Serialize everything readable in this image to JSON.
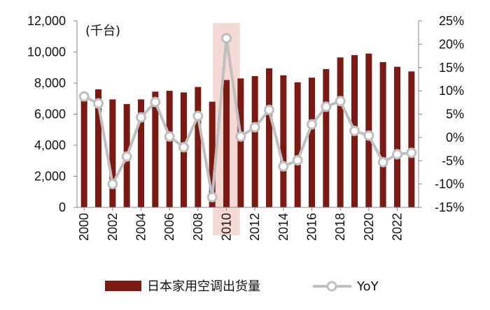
{
  "chart_data": {
    "type": "bar",
    "x": [
      2000,
      2001,
      2002,
      2003,
      2004,
      2005,
      2006,
      2007,
      2008,
      2009,
      2010,
      2011,
      2012,
      2013,
      2014,
      2015,
      2016,
      2017,
      2018,
      2019,
      2020,
      2021,
      2022,
      2023
    ],
    "x_tick_labels": [
      "2000",
      "2002",
      "2004",
      "2006",
      "2008",
      "2010",
      "2012",
      "2014",
      "2016",
      "2018",
      "2020",
      "2022"
    ],
    "series": [
      {
        "name": "日本家用空调出货量",
        "type": "bar",
        "axis": "left",
        "color": "#7B1A12",
        "values": [
          7200,
          7600,
          6950,
          6650,
          6950,
          7450,
          7500,
          7400,
          7750,
          6800,
          8200,
          8300,
          8450,
          8950,
          8500,
          8050,
          8350,
          8900,
          9650,
          9800,
          9900,
          9350,
          9050,
          8750
        ]
      },
      {
        "name": "YoY",
        "type": "line",
        "axis": "right",
        "color": "#BFBFBF",
        "values": [
          8.8,
          7.3,
          -10,
          -4.1,
          4.3,
          7.6,
          0.2,
          -2.1,
          4.6,
          -12.8,
          21.3,
          0.2,
          2.2,
          5.9,
          -6.2,
          -4.9,
          2.8,
          6.6,
          7.8,
          1.4,
          0.4,
          -5.3,
          -3.6,
          -3.3
        ]
      }
    ],
    "y_left": {
      "ylim": [
        0,
        12000
      ],
      "ticks": [
        "0",
        "2,000",
        "4,000",
        "6,000",
        "8,000",
        "10,000",
        "12,000"
      ],
      "unit_label": "(千台)"
    },
    "y_right": {
      "ylim": [
        -15,
        25
      ],
      "ticks": [
        "-15%",
        "-10%",
        "-5%",
        "0%",
        "5%",
        "10%",
        "15%",
        "20%",
        "25%"
      ]
    },
    "highlight": {
      "x": 2010,
      "color": "#F5D9D4"
    },
    "legend_position": "bottom",
    "grid": false
  }
}
